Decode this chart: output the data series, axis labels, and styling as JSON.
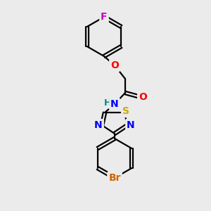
{
  "bg_color": "#ebebeb",
  "bond_color": "#000000",
  "atom_colors": {
    "F": "#cc00cc",
    "O": "#ff0000",
    "N": "#0000ff",
    "S": "#ccaa00",
    "Br": "#cc6600",
    "H": "#008888",
    "C": "#000000"
  },
  "font_size": 9,
  "fig_size": [
    3.0,
    3.0
  ],
  "dpi": 100
}
